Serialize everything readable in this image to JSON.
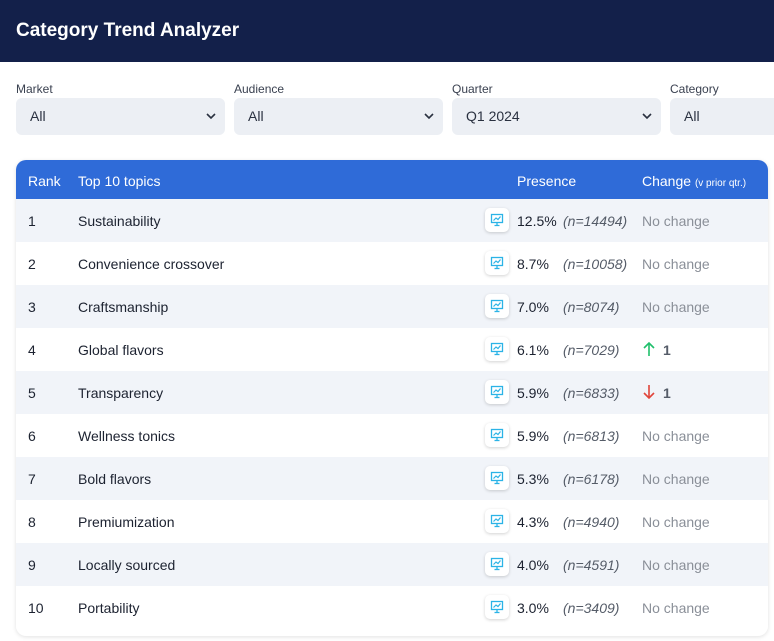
{
  "header": {
    "title": "Category Trend Analyzer"
  },
  "filters": [
    {
      "label": "Market",
      "value": "All"
    },
    {
      "label": "Audience",
      "value": "All"
    },
    {
      "label": "Quarter",
      "value": "Q1 2024"
    },
    {
      "label": "Category",
      "value": "All"
    }
  ],
  "table": {
    "columns": {
      "rank": "Rank",
      "topics": "Top 10 topics",
      "presence": "Presence",
      "change": "Change",
      "change_sub": "(v prior qtr.)"
    },
    "rows": [
      {
        "rank": "1",
        "topic": "Sustainability",
        "presence": "12.5%",
        "n": "(n=14494)",
        "change": "No change"
      },
      {
        "rank": "2",
        "topic": "Convenience crossover",
        "presence": "8.7%",
        "n": "(n=10058)",
        "change": "No change"
      },
      {
        "rank": "3",
        "topic": "Craftsmanship",
        "presence": "7.0%",
        "n": "(n=8074)",
        "change": "No change"
      },
      {
        "rank": "4",
        "topic": "Global flavors",
        "presence": "6.1%",
        "n": "(n=7029)",
        "change": "1",
        "direction": "up"
      },
      {
        "rank": "5",
        "topic": "Transparency",
        "presence": "5.9%",
        "n": "(n=6833)",
        "change": "1",
        "direction": "down"
      },
      {
        "rank": "6",
        "topic": "Wellness tonics",
        "presence": "5.9%",
        "n": "(n=6813)",
        "change": "No change"
      },
      {
        "rank": "7",
        "topic": "Bold flavors",
        "presence": "5.3%",
        "n": "(n=6178)",
        "change": "No change"
      },
      {
        "rank": "8",
        "topic": "Premiumization",
        "presence": "4.3%",
        "n": "(n=4940)",
        "change": "No change"
      },
      {
        "rank": "9",
        "topic": "Locally sourced",
        "presence": "4.0%",
        "n": "(n=4591)",
        "change": "No change"
      },
      {
        "rank": "10",
        "topic": "Portability",
        "presence": "3.0%",
        "n": "(n=3409)",
        "change": "No change"
      }
    ]
  },
  "colors": {
    "up": "#1fbf6b",
    "down": "#e0443a",
    "header": "#13204a",
    "accent": "#2f6bd8"
  }
}
